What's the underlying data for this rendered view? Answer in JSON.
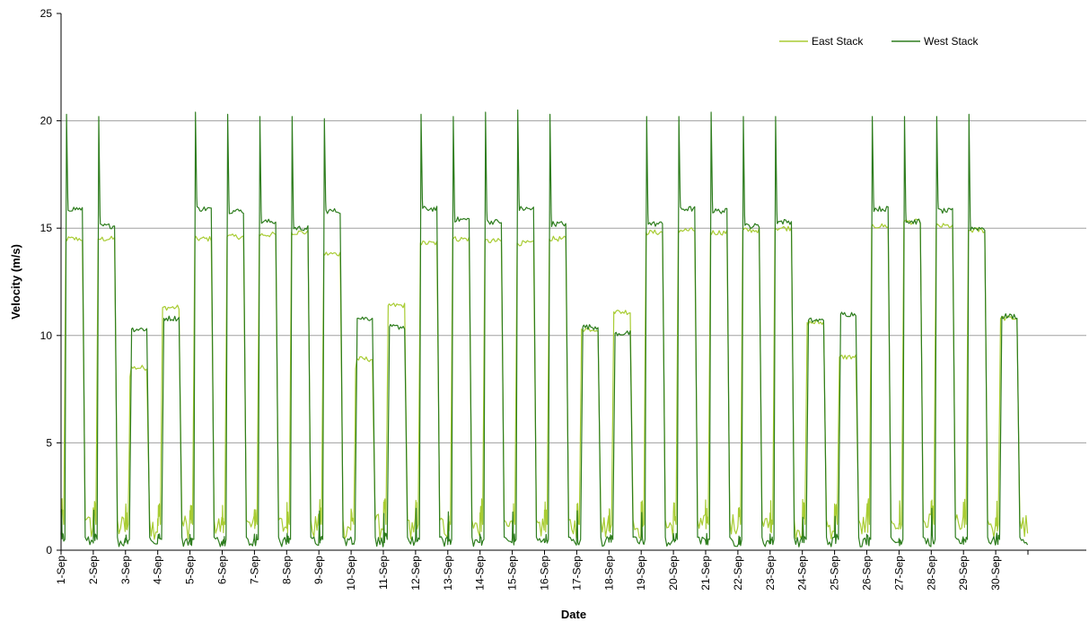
{
  "chart_data": {
    "type": "line",
    "xlabel": "Date",
    "ylabel": "Velocity (m/s)",
    "ylim": [
      0,
      25
    ],
    "yticks": [
      0,
      5,
      10,
      15,
      20,
      25
    ],
    "grid": "horizontal",
    "legend_position": "top-right",
    "x_categories": [
      "1-Sep",
      "2-Sep",
      "3-Sep",
      "4-Sep",
      "5-Sep",
      "6-Sep",
      "7-Sep",
      "8-Sep",
      "9-Sep",
      "10-Sep",
      "11-Sep",
      "12-Sep",
      "13-Sep",
      "14-Sep",
      "15-Sep",
      "16-Sep",
      "17-Sep",
      "18-Sep",
      "19-Sep",
      "20-Sep",
      "21-Sep",
      "22-Sep",
      "23-Sep",
      "24-Sep",
      "25-Sep",
      "26-Sep",
      "27-Sep",
      "28-Sep",
      "29-Sep",
      "30-Sep"
    ],
    "series": [
      {
        "name": "East Stack",
        "color": "#a8cc33",
        "daily_plateau": [
          14.5,
          14.5,
          8.5,
          11.3,
          14.5,
          14.6,
          14.7,
          14.8,
          13.8,
          8.9,
          11.4,
          14.3,
          14.5,
          14.4,
          14.3,
          14.5,
          10.3,
          11.1,
          14.8,
          14.9,
          14.8,
          14.9,
          15.0,
          10.6,
          9.0,
          15.1,
          15.3,
          15.1,
          14.9,
          10.8
        ]
      },
      {
        "name": "West Stack",
        "color": "#2e7d1e",
        "daily_plateau": [
          15.9,
          15.1,
          10.3,
          10.8,
          15.9,
          15.8,
          15.3,
          15.0,
          15.8,
          10.8,
          10.4,
          15.9,
          15.4,
          15.3,
          15.9,
          15.2,
          10.4,
          10.1,
          15.2,
          15.9,
          15.8,
          15.1,
          15.3,
          10.7,
          11.0,
          15.9,
          15.3,
          15.8,
          15.0,
          10.9
        ],
        "daily_peak": [
          20.3,
          20.2,
          null,
          null,
          20.4,
          20.3,
          20.2,
          20.2,
          20.1,
          null,
          null,
          20.3,
          20.2,
          20.4,
          20.5,
          20.3,
          null,
          null,
          20.2,
          20.2,
          20.4,
          20.2,
          20.2,
          null,
          null,
          20.2,
          20.2,
          20.2,
          20.3,
          null
        ]
      }
    ]
  }
}
